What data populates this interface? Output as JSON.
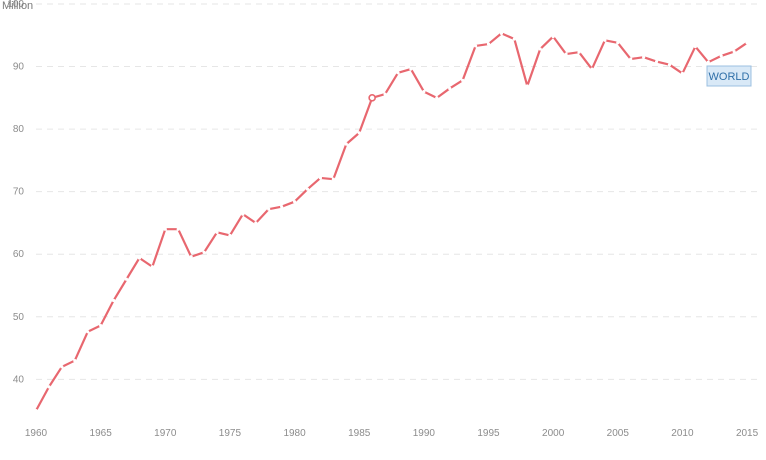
{
  "chart_data": {
    "type": "line",
    "unit_label": "Million",
    "ylim": [
      33.5,
      100
    ],
    "y_ticks": [
      40,
      50,
      60,
      70,
      80,
      90,
      100
    ],
    "xlim": [
      1960,
      2016
    ],
    "x_ticks": [
      1960,
      1965,
      1970,
      1975,
      1980,
      1985,
      1990,
      1995,
      2000,
      2005,
      2010,
      2015
    ],
    "grid": "horizontal dashed",
    "series": [
      {
        "name": "WORLD",
        "color": "#e8676f",
        "points": [
          [
            1960,
            35.0
          ],
          [
            1961,
            38.8
          ],
          [
            1962,
            42.0
          ],
          [
            1963,
            43.0
          ],
          [
            1964,
            47.6
          ],
          [
            1965,
            48.6
          ],
          [
            1966,
            52.6
          ],
          [
            1967,
            56.0
          ],
          [
            1968,
            59.4
          ],
          [
            1969,
            58.0
          ],
          [
            1970,
            64.0
          ],
          [
            1971,
            64.0
          ],
          [
            1972,
            59.6
          ],
          [
            1973,
            60.3
          ],
          [
            1974,
            63.5
          ],
          [
            1975,
            63.0
          ],
          [
            1976,
            66.4
          ],
          [
            1977,
            65.0
          ],
          [
            1978,
            67.2
          ],
          [
            1979,
            67.6
          ],
          [
            1980,
            68.4
          ],
          [
            1981,
            70.4
          ],
          [
            1982,
            72.2
          ],
          [
            1983,
            72.0
          ],
          [
            1984,
            77.6
          ],
          [
            1985,
            79.4
          ],
          [
            1986,
            85.0
          ],
          [
            1987,
            85.6
          ],
          [
            1988,
            89.0
          ],
          [
            1989,
            89.6
          ],
          [
            1990,
            86.0
          ],
          [
            1991,
            85.0
          ],
          [
            1992,
            86.5
          ],
          [
            1993,
            87.8
          ],
          [
            1994,
            93.3
          ],
          [
            1995,
            93.6
          ],
          [
            1996,
            95.3
          ],
          [
            1997,
            94.4
          ],
          [
            1998,
            86.9
          ],
          [
            1999,
            92.8
          ],
          [
            2000,
            94.8
          ],
          [
            2001,
            92.0
          ],
          [
            2002,
            92.3
          ],
          [
            2003,
            89.6
          ],
          [
            2004,
            94.2
          ],
          [
            2005,
            93.8
          ],
          [
            2006,
            91.2
          ],
          [
            2007,
            91.5
          ],
          [
            2008,
            90.8
          ],
          [
            2009,
            90.3
          ],
          [
            2010,
            88.9
          ],
          [
            2011,
            93.2
          ],
          [
            2012,
            90.7
          ],
          [
            2013,
            91.7
          ],
          [
            2014,
            92.4
          ],
          [
            2015,
            93.8
          ]
        ],
        "highlight_x": 1986
      }
    ]
  }
}
